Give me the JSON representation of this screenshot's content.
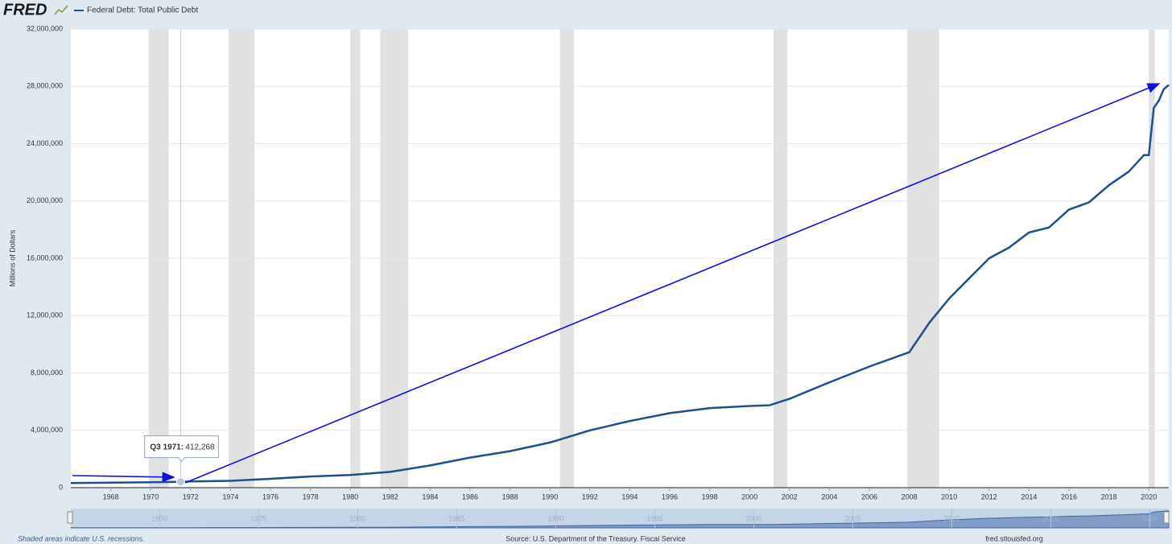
{
  "logo": "FRED",
  "chart_data": {
    "type": "line",
    "series": [
      {
        "name": "Federal Debt: Total Public Debt",
        "color": "#1f4e8c",
        "values": [
          320000,
          350000,
          380000,
          412268,
          430000,
          480000,
          620000,
          780000,
          880000,
          1100000,
          1550000,
          2100000,
          2550000,
          3150000,
          4000000,
          4650000,
          5200000,
          5550000,
          5700000,
          5750000,
          6200000,
          7350000,
          8450000,
          9450000,
          11500000,
          13200000,
          14600000,
          16000000,
          16750000,
          17800000,
          18150000,
          19400000,
          19900000,
          21100000,
          22050000,
          23200000,
          23200000,
          26500000,
          27000000,
          27800000,
          28100000
        ]
      }
    ],
    "x": [
      1966,
      1968,
      1970,
      1971.5,
      1972,
      1974,
      1976,
      1978,
      1980,
      1982,
      1984,
      1986,
      1988,
      1990,
      1992,
      1994,
      1996,
      1998,
      2000,
      2001,
      2002,
      2004,
      2006,
      2008,
      2009,
      2010,
      2011,
      2012,
      2013,
      2014,
      2015,
      2016,
      2017,
      2018,
      2019,
      2019.75,
      2020,
      2020.25,
      2020.5,
      2020.75,
      2021
    ],
    "xlim": [
      1966,
      2021
    ],
    "xticks": [
      1968,
      1970,
      1972,
      1974,
      1976,
      1978,
      1980,
      1982,
      1984,
      1986,
      1988,
      1990,
      1992,
      1994,
      1996,
      1998,
      2000,
      2002,
      2004,
      2006,
      2008,
      2010,
      2012,
      2014,
      2016,
      2018,
      2020
    ],
    "ylim": [
      0,
      32000000
    ],
    "yticks": [
      0,
      {
        "value": 4000000,
        "label": "4,000,000"
      },
      {
        "value": 8000000,
        "label": "8,000,000"
      },
      {
        "value": 12000000,
        "label": "12,000,000"
      },
      {
        "value": 16000000,
        "label": "16,000,000"
      },
      {
        "value": 20000000,
        "label": "20,000,000"
      },
      {
        "value": 24000000,
        "label": "24,000,000"
      },
      {
        "value": 28000000,
        "label": "28,000,000"
      },
      {
        "value": 32000000,
        "label": "32,000,000"
      }
    ],
    "ylabel": "Millions of Dollars",
    "grid": true,
    "recessions": [
      [
        1969.9,
        1970.9
      ],
      [
        1973.9,
        1975.2
      ],
      [
        1980.0,
        1980.5
      ],
      [
        1981.5,
        1982.9
      ],
      [
        1990.5,
        1991.2
      ],
      [
        2001.2,
        2001.9
      ],
      [
        2007.9,
        2009.5
      ],
      [
        2020.0,
        2020.3
      ]
    ],
    "recession_note": "Shaded areas indicate U.S. recessions.",
    "tooltip": {
      "label": "Q3 1971:",
      "x": 1971.5,
      "value": 412268,
      "value_label": "412,268"
    },
    "navigator_ticks": [
      1970,
      1975,
      1980,
      1985,
      1990,
      1995,
      2000,
      2005,
      2010,
      2015,
      2020
    ],
    "source": "Source: U.S. Department of the Treasury. Fiscal Service",
    "site": "fred.stlouisfed.org"
  }
}
